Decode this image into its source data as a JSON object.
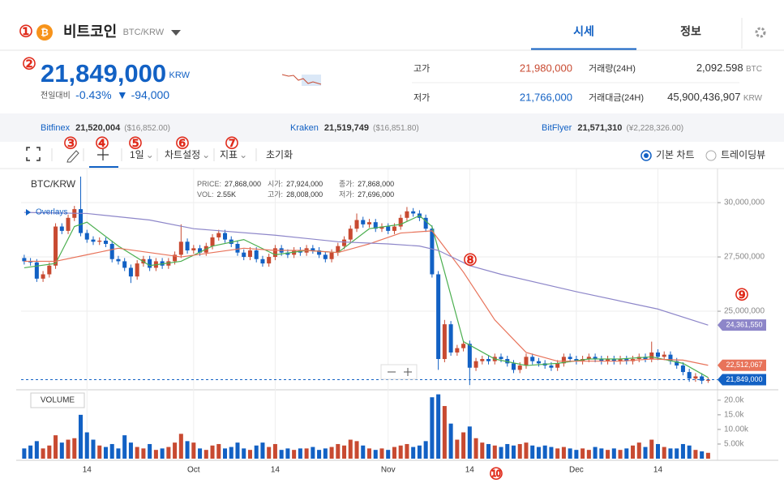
{
  "header": {
    "coin": "비트코인",
    "pair": "BTC/KRW",
    "tabs": [
      "시세",
      "정보"
    ]
  },
  "price": {
    "value": "21,849,000",
    "unit": "KRW",
    "change_label": "전일대비",
    "change_pct": "-0.43%",
    "change_amt": "▼ -94,000"
  },
  "stats": [
    {
      "label": "고가",
      "value": "21,980,000"
    },
    {
      "label": "저가",
      "value": "21,766,000"
    },
    {
      "label": "거래량(24H)",
      "value": "2,092.598",
      "unit": "BTC"
    },
    {
      "label": "거래대금(24H)",
      "value": "45,900,436,907",
      "unit": "KRW"
    }
  ],
  "exchanges": [
    {
      "name": "Bitfinex",
      "price": "21,520,004",
      "quote": "($16,852.00)"
    },
    {
      "name": "Kraken",
      "price": "21,519,749",
      "quote": "($16,851.80)"
    },
    {
      "name": "BitFlyer",
      "price": "21,571,310",
      "quote": "(¥2,228,326.00)"
    }
  ],
  "toolbar": {
    "interval": "1일",
    "settings": "차트설정",
    "indicators": "지표",
    "reset": "초기화",
    "options": [
      "기본 차트",
      "트레이딩뷰"
    ]
  },
  "annotations": [
    "①",
    "②",
    "③",
    "④",
    "⑤",
    "⑥",
    "⑦",
    "⑧",
    "⑨",
    "⑩"
  ],
  "chart_data": {
    "type": "candlestick",
    "title": "BTC/KRW",
    "overlay_legend": "Overlays",
    "volume_title": "VOLUME",
    "info": [
      {
        "label": "PRICE:",
        "value": "27,868,000"
      },
      {
        "label": "시가:",
        "value": "27,924,000"
      },
      {
        "label": "종가:",
        "value": "27,868,000"
      },
      {
        "label": "VOL:",
        "value": "2.55K"
      },
      {
        "label": "고가:",
        "value": "28,008,000"
      },
      {
        "label": "저가:",
        "value": "27,696,000"
      }
    ],
    "up_color": "#c84a31",
    "down_color": "#1261c4",
    "grid": true,
    "xlim": [
      -0.5,
      110.5
    ],
    "xticks": [
      {
        "value": 10,
        "label": "14"
      },
      {
        "value": 27,
        "label": "Oct"
      },
      {
        "value": 40,
        "label": "14"
      },
      {
        "value": 58,
        "label": "Nov"
      },
      {
        "value": 71,
        "label": "14"
      },
      {
        "value": 88,
        "label": "Dec"
      },
      {
        "value": 101,
        "label": "14"
      }
    ],
    "ylim": [
      21420000,
      31420000
    ],
    "yticks": [
      {
        "value": 25000000,
        "label": "25,000,000"
      },
      {
        "value": 27500000,
        "label": "27,500,000"
      },
      {
        "value": 30000000,
        "label": "30,000,000"
      }
    ],
    "volume_ylim": [
      0,
      23000
    ],
    "volume_yticks": [
      {
        "value": 5000,
        "label": "5.00k"
      },
      {
        "value": 10000,
        "label": "10.00k"
      },
      {
        "value": 15000,
        "label": "15.0k"
      },
      {
        "value": 20000,
        "label": "20.0k"
      }
    ],
    "ohlc": [
      [
        27450000,
        27600000,
        27150000,
        27300000
      ],
      [
        27300000,
        27450000,
        27100000,
        27250000
      ],
      [
        27250000,
        27400000,
        26350000,
        26500000
      ],
      [
        26500000,
        26850000,
        26350000,
        26700000
      ],
      [
        26700000,
        27250000,
        26550000,
        27100000
      ],
      [
        27100000,
        29050000,
        26950000,
        28900000
      ],
      [
        28900000,
        29050000,
        28550000,
        28700000
      ],
      [
        28700000,
        29450000,
        28550000,
        29300000
      ],
      [
        29300000,
        29850000,
        29150000,
        29700000
      ],
      [
        29700000,
        31200000,
        28450000,
        28600000
      ],
      [
        28600000,
        28750000,
        28150000,
        28300000
      ],
      [
        28300000,
        28450000,
        28050000,
        28200000
      ],
      [
        28200000,
        28400000,
        28050000,
        28250000
      ],
      [
        28250000,
        28400000,
        27950000,
        28100000
      ],
      [
        28100000,
        28250000,
        27250000,
        27400000
      ],
      [
        27400000,
        27550000,
        27150000,
        27300000
      ],
      [
        27300000,
        27450000,
        26850000,
        27000000
      ],
      [
        27000000,
        27150000,
        26300000,
        26600000
      ],
      [
        26600000,
        27350000,
        26450000,
        27200000
      ],
      [
        27200000,
        27550000,
        27050000,
        27400000
      ],
      [
        27400000,
        27550000,
        26850000,
        27000000
      ],
      [
        27000000,
        27450000,
        26850000,
        27300000
      ],
      [
        27300000,
        27450000,
        26950000,
        27100000
      ],
      [
        27100000,
        27450000,
        26950000,
        27300000
      ],
      [
        27300000,
        27750000,
        27150000,
        27600000
      ],
      [
        27600000,
        29000000,
        27450000,
        28200000
      ],
      [
        28200000,
        28350000,
        27650000,
        27800000
      ],
      [
        27800000,
        28050000,
        27650000,
        27900000
      ],
      [
        27900000,
        28050000,
        27550000,
        27700000
      ],
      [
        27700000,
        28150000,
        27550000,
        28000000
      ],
      [
        28000000,
        28550000,
        27850000,
        28400000
      ],
      [
        28400000,
        28750000,
        28250000,
        28600000
      ],
      [
        28600000,
        28750000,
        28150000,
        28300000
      ],
      [
        28300000,
        28450000,
        27950000,
        28100000
      ],
      [
        28100000,
        28250000,
        27550000,
        27700000
      ],
      [
        27700000,
        27850000,
        27350000,
        27500000
      ],
      [
        27500000,
        27950000,
        27350000,
        27800000
      ],
      [
        27800000,
        27950000,
        27250000,
        27400000
      ],
      [
        27400000,
        27550000,
        27050000,
        27200000
      ],
      [
        27200000,
        27650000,
        27050000,
        27500000
      ],
      [
        27500000,
        28050000,
        27350000,
        27900000
      ],
      [
        27900000,
        28050000,
        27550000,
        27700000
      ],
      [
        27700000,
        27850000,
        27450000,
        27600000
      ],
      [
        27600000,
        27950000,
        27450000,
        27800000
      ],
      [
        27800000,
        27950000,
        27550000,
        27700000
      ],
      [
        27700000,
        28050000,
        27550000,
        27900000
      ],
      [
        27900000,
        28050000,
        27650000,
        27800000
      ],
      [
        27800000,
        27950000,
        27450000,
        27600000
      ],
      [
        27600000,
        27750000,
        27250000,
        27400000
      ],
      [
        27400000,
        27850000,
        27250000,
        27700000
      ],
      [
        27700000,
        28150000,
        27550000,
        28000000
      ],
      [
        28000000,
        28450000,
        27850000,
        28300000
      ],
      [
        28300000,
        28950000,
        28150000,
        28800000
      ],
      [
        28800000,
        29500000,
        28650000,
        29200000
      ],
      [
        29200000,
        29350000,
        28850000,
        29000000
      ],
      [
        29000000,
        29250000,
        28850000,
        29100000
      ],
      [
        29100000,
        29250000,
        28650000,
        28800000
      ],
      [
        28800000,
        29050000,
        28650000,
        28900000
      ],
      [
        28900000,
        29050000,
        28550000,
        28700000
      ],
      [
        28700000,
        29050000,
        28550000,
        28900000
      ],
      [
        28900000,
        29450000,
        28750000,
        29300000
      ],
      [
        29300000,
        29800000,
        29150000,
        29600000
      ],
      [
        29600000,
        29750000,
        29350000,
        29500000
      ],
      [
        29500000,
        29650000,
        29150000,
        29300000
      ],
      [
        29300000,
        29450000,
        28650000,
        28800000
      ],
      [
        28800000,
        28950000,
        26550000,
        26700000
      ],
      [
        26700000,
        26850000,
        22300000,
        22800000
      ],
      [
        22800000,
        24600000,
        22650000,
        24400000
      ],
      [
        24400000,
        24550000,
        22950000,
        23100000
      ],
      [
        23100000,
        23450000,
        22950000,
        23300000
      ],
      [
        23300000,
        23650000,
        23150000,
        23500000
      ],
      [
        23500000,
        23650000,
        21600000,
        22400000
      ],
      [
        22400000,
        22850000,
        22250000,
        22700000
      ],
      [
        22700000,
        22950000,
        22550000,
        22800000
      ],
      [
        22800000,
        22950000,
        22550000,
        22700000
      ],
      [
        22700000,
        23050000,
        22550000,
        22900000
      ],
      [
        22900000,
        23050000,
        22650000,
        22800000
      ],
      [
        22800000,
        22950000,
        22450000,
        22600000
      ],
      [
        22600000,
        22750000,
        22150000,
        22300000
      ],
      [
        22300000,
        22650000,
        22150000,
        22500000
      ],
      [
        22500000,
        23050000,
        22350000,
        22900000
      ],
      [
        22900000,
        23050000,
        22550000,
        22700000
      ],
      [
        22700000,
        22850000,
        22450000,
        22600000
      ],
      [
        22600000,
        22750000,
        22350000,
        22500000
      ],
      [
        22500000,
        22650000,
        22250000,
        22400000
      ],
      [
        22400000,
        22750000,
        22250000,
        22600000
      ],
      [
        22600000,
        23050000,
        22450000,
        22900000
      ],
      [
        22900000,
        23050000,
        22650000,
        22800000
      ],
      [
        22800000,
        22950000,
        22550000,
        22700000
      ],
      [
        22700000,
        22950000,
        22550000,
        22800000
      ],
      [
        22800000,
        23050000,
        22650000,
        22900000
      ],
      [
        22900000,
        23050000,
        22650000,
        22800000
      ],
      [
        22800000,
        22950000,
        22550000,
        22700000
      ],
      [
        22700000,
        22950000,
        22550000,
        22800000
      ],
      [
        22800000,
        22950000,
        22550000,
        22700000
      ],
      [
        22700000,
        22950000,
        22550000,
        22800000
      ],
      [
        22800000,
        22950000,
        22550000,
        22700000
      ],
      [
        22700000,
        22950000,
        22550000,
        22800000
      ],
      [
        22800000,
        23050000,
        22650000,
        22900000
      ],
      [
        22900000,
        23050000,
        22650000,
        22800000
      ],
      [
        22800000,
        23600000,
        22650000,
        23100000
      ],
      [
        23100000,
        23250000,
        22750000,
        22900000
      ],
      [
        22900000,
        23150000,
        22750000,
        23000000
      ],
      [
        23000000,
        23150000,
        22550000,
        22700000
      ],
      [
        22700000,
        22850000,
        22350000,
        22500000
      ],
      [
        22500000,
        22650000,
        22050000,
        22200000
      ],
      [
        22200000,
        22350000,
        21750000,
        21900000
      ],
      [
        21900000,
        22150000,
        21750000,
        22000000
      ],
      [
        22000000,
        22150000,
        21650000,
        21800000
      ],
      [
        21800000,
        21950000,
        21700000,
        21849000
      ]
    ],
    "volume": [
      3500,
      4500,
      6000,
      3500,
      4500,
      8000,
      5500,
      6500,
      7000,
      15000,
      9000,
      6500,
      4500,
      4000,
      5000,
      3500,
      8000,
      5500,
      4000,
      3500,
      5000,
      3000,
      3500,
      4000,
      5500,
      8500,
      6000,
      5500,
      3500,
      3000,
      4500,
      5000,
      3500,
      4000,
      5500,
      3500,
      3000,
      4500,
      5500,
      4000,
      5000,
      3000,
      3500,
      3000,
      3500,
      3500,
      4000,
      3000,
      3500,
      4000,
      5000,
      4500,
      6500,
      6000,
      4500,
      3500,
      3000,
      3500,
      3000,
      4000,
      4500,
      5000,
      4000,
      4500,
      6000,
      21000,
      22000,
      18000,
      12000,
      6500,
      9000,
      11000,
      7000,
      5500,
      5000,
      4500,
      4000,
      5000,
      4500,
      5000,
      5500,
      4500,
      4000,
      4500,
      4000,
      3500,
      4000,
      3500,
      3000,
      3500,
      3000,
      4000,
      3500,
      3000,
      3500,
      3000,
      3500,
      4500,
      5500,
      4000,
      6500,
      5000,
      4000,
      3500,
      3500,
      5000,
      4500,
      3000,
      2500,
      2000
    ],
    "overlays": [
      {
        "color": "#4caf50",
        "x": [
          0,
          5,
          8,
          10,
          15,
          20,
          25,
          30,
          35,
          40,
          45,
          50,
          55,
          60,
          63,
          65,
          67,
          70,
          75,
          80,
          85,
          90,
          95,
          100,
          105,
          109
        ],
        "values": [
          27000000,
          27200000,
          28900000,
          29100000,
          28000000,
          27100000,
          27300000,
          28000000,
          28300000,
          27600000,
          27800000,
          27700000,
          28800000,
          29000000,
          29400000,
          28900000,
          26800000,
          23600000,
          22800000,
          22500000,
          22600000,
          22800000,
          22800000,
          22900000,
          22600000,
          21950000
        ]
      },
      {
        "color": "#e8735a",
        "x": [
          0,
          5,
          10,
          15,
          20,
          25,
          30,
          35,
          40,
          45,
          50,
          55,
          60,
          65,
          70,
          75,
          80,
          85,
          90,
          95,
          100,
          105,
          109
        ],
        "values": [
          27300000,
          27300000,
          27600000,
          27900000,
          27700000,
          27500000,
          27700000,
          27900000,
          27800000,
          27800000,
          27700000,
          28100000,
          28600000,
          28700000,
          26800000,
          24600000,
          23100000,
          22700000,
          22700000,
          22700000,
          22800000,
          22750000,
          22512067
        ],
        "tag": {
          "value": 22512067,
          "label": "22,512,067"
        }
      },
      {
        "color": "#8d86c9",
        "x": [
          0,
          10,
          20,
          27,
          40,
          50,
          58,
          63,
          66,
          71,
          76,
          88,
          101,
          109
        ],
        "values": [
          29550000,
          29500000,
          29200000,
          28800000,
          28500000,
          28200000,
          28100000,
          28000000,
          27800000,
          27100000,
          26700000,
          25900000,
          25100000,
          24361550
        ],
        "tag": {
          "value": 24361550,
          "label": "24,361,550"
        }
      }
    ],
    "last_price": {
      "value": 21849000,
      "label": "21,849,000"
    }
  }
}
